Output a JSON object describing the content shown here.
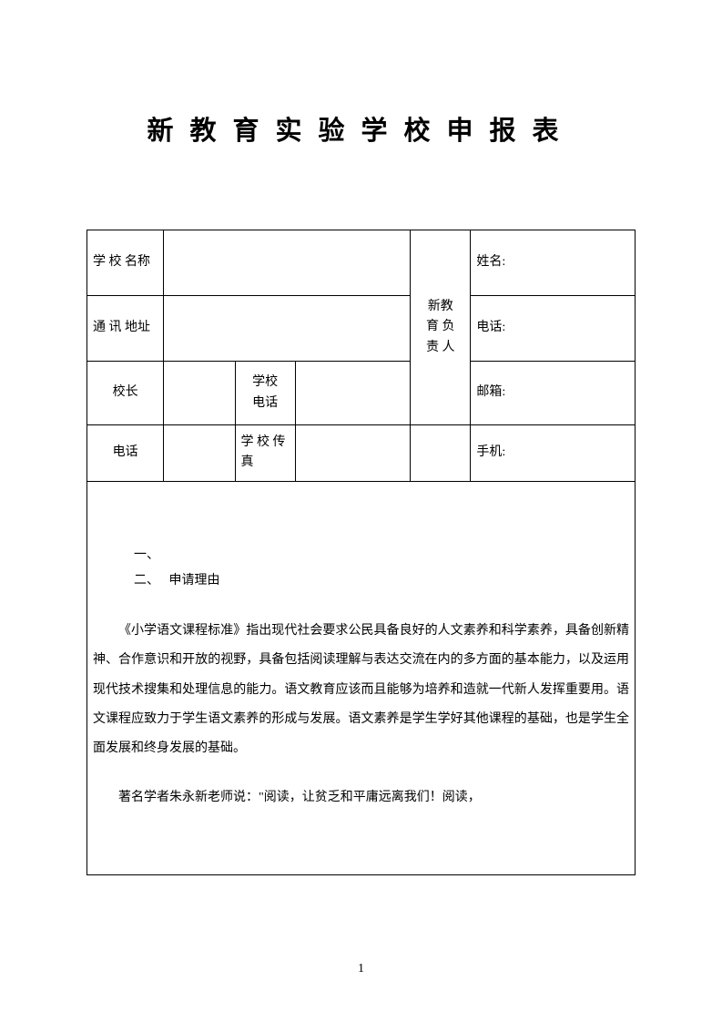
{
  "title": "新教育实验学校申报表",
  "labels": {
    "schoolName": "学 校 名称",
    "address": "通 讯 地址",
    "principal": "校长",
    "phone": "电话",
    "schoolPhone": "学校\n电话",
    "schoolFax": "学 校 传真",
    "leader": "新教\n育 负\n责 人",
    "name": "姓名:",
    "tel": "电话:",
    "email": "邮箱:",
    "mobile": "手机:"
  },
  "content": {
    "listOne": "一、",
    "listTwoPrefix": "二、",
    "listTwoText": "申请理由",
    "para1": "《小学语文课程标准》指出现代社会要求公民具备良好的人文素养和科学素养，具备创新精神、合作意识和开放的视野，具备包括阅读理解与表达交流在内的多方面的基本能力，以及运用现代技术搜集和处理信息的能力。语文教育应该而且能够为培养和造就一代新人发挥重要用。语文课程应致力于学生语文素养的形成与发展。语文素养是学生学好其他课程的基础，也是学生全面发展和终身发展的基础。",
    "para2": "著名学者朱永新老师说：\"阅读，让贫乏和平庸远离我们！阅读，"
  },
  "pageNumber": "1",
  "colors": {
    "border": "#000000",
    "background": "#ffffff",
    "text": "#000000"
  },
  "fontSizes": {
    "title": 29,
    "body": 14
  }
}
